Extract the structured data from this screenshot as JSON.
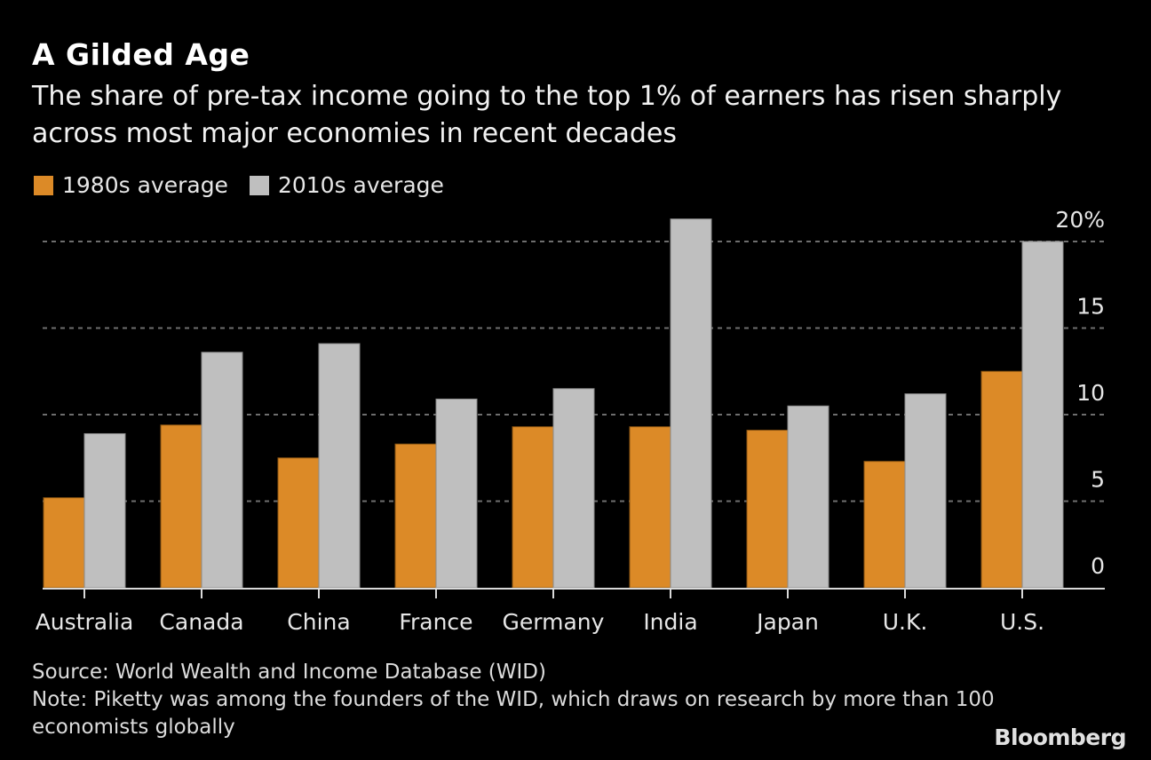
{
  "header": {
    "title": "A Gilded Age",
    "subtitle": "The share of pre-tax income going to the top 1% of earners has risen sharply across most major economies in recent decades"
  },
  "legend": [
    {
      "label": "1980s average",
      "color": "#dc8a27"
    },
    {
      "label": "2010s average",
      "color": "#bfbfbf"
    }
  ],
  "footer": {
    "source": "Source: World Wealth and Income Database (WID)",
    "note": "Note: Piketty was among the founders of the WID, which draws on research by more than 100 economists globally",
    "brand": "Bloomberg"
  },
  "chart_data": {
    "type": "bar",
    "title": "A Gilded Age",
    "subtitle": "The share of pre-tax income going to the top 1% of earners has risen sharply across most major economies in recent decades",
    "xlabel": "",
    "ylabel": "",
    "categories": [
      "Australia",
      "Canada",
      "China",
      "France",
      "Germany",
      "India",
      "Japan",
      "U.K.",
      "U.S."
    ],
    "series": [
      {
        "name": "1980s average",
        "color": "#dc8a27",
        "values": [
          5.2,
          9.4,
          7.5,
          8.3,
          9.3,
          9.3,
          9.1,
          7.3,
          12.5
        ]
      },
      {
        "name": "2010s average",
        "color": "#bfbfbf",
        "values": [
          8.9,
          13.6,
          14.1,
          10.9,
          11.5,
          21.3,
          10.5,
          11.2,
          20.0
        ]
      }
    ],
    "ylim": [
      0,
      20
    ],
    "yticks": [
      0,
      5,
      10,
      15,
      20
    ],
    "ytick_labels": [
      "0",
      "5",
      "10",
      "15",
      "20%"
    ],
    "y_axis_side": "right",
    "grid": true,
    "legend_position": "top-left"
  }
}
